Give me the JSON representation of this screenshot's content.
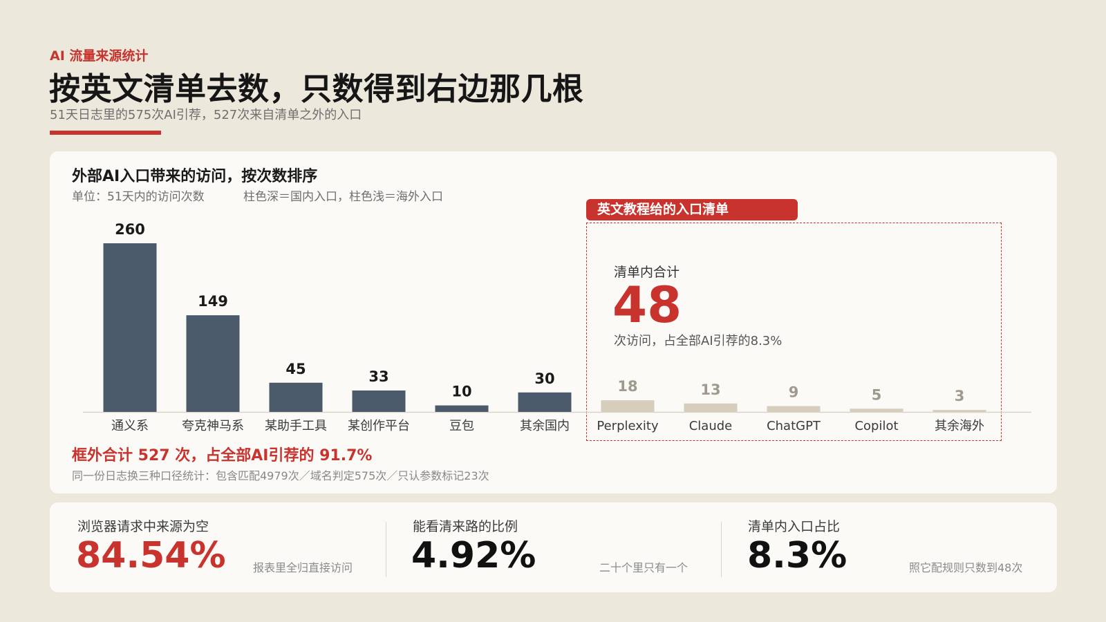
{
  "header": {
    "eyebrow": "AI 流量来源统计",
    "title": "按英文清单去数，只数得到右边那几根",
    "subtitle": "51天日志里的575次AI引荐，527次来自清单之外的入口"
  },
  "chart_panel": {
    "title": "外部AI入口带来的访问，按次数排序",
    "unit": "单位：51天内的访问次数",
    "legend_text": "柱色深＝国内入口，柱色浅＝海外入口",
    "callout_tag": "英文教程给的入口清单",
    "inlist_label": "清单内合计",
    "inlist_value": "48",
    "inlist_note": "次访问，占全部AI引荐的8.3%",
    "outside_total": "框外合计 527 次，占全部AI引荐的 91.7%",
    "method_note": "同一份日志换三种口径统计：包含匹配4979次／域名判定575次／只认参数标记23次"
  },
  "chart_data": {
    "type": "bar",
    "title": "外部AI入口带来的访问，按次数排序",
    "xlabel": "",
    "ylabel": "",
    "ylim": [
      0,
      260
    ],
    "grid": false,
    "categories": [
      "通义系",
      "夸克神马系",
      "某助手工具",
      "某创作平台",
      "豆包",
      "其余国内",
      "Perplexity",
      "Claude",
      "ChatGPT",
      "Copilot",
      "其余海外"
    ],
    "values": [
      260,
      149,
      45,
      33,
      10,
      30,
      18,
      13,
      9,
      5,
      3
    ],
    "groups": [
      "domestic",
      "domestic",
      "domestic",
      "domestic",
      "domestic",
      "domestic",
      "overseas",
      "overseas",
      "overseas",
      "overseas",
      "overseas"
    ],
    "colors": {
      "domestic": "#4a5a6a",
      "overseas": "#d7cdbd",
      "domestic_label": "#1a1a1a",
      "overseas_label": "#a09a8e"
    }
  },
  "stats": [
    {
      "label": "浏览器请求中来源为空",
      "value": "84.54%",
      "note": "报表里全归直接访问",
      "color": "#c8332e"
    },
    {
      "label": "能看清来路的比例",
      "value": "4.92%",
      "note": "二十个里只有一个",
      "color": "#111111"
    },
    {
      "label": "清单内入口占比",
      "value": "8.3%",
      "note": "照它配规则只数到48次",
      "color": "#111111"
    }
  ],
  "colors": {
    "accent": "#c8332e",
    "background": "#ece8dc",
    "panel": "#fbfaf7"
  }
}
